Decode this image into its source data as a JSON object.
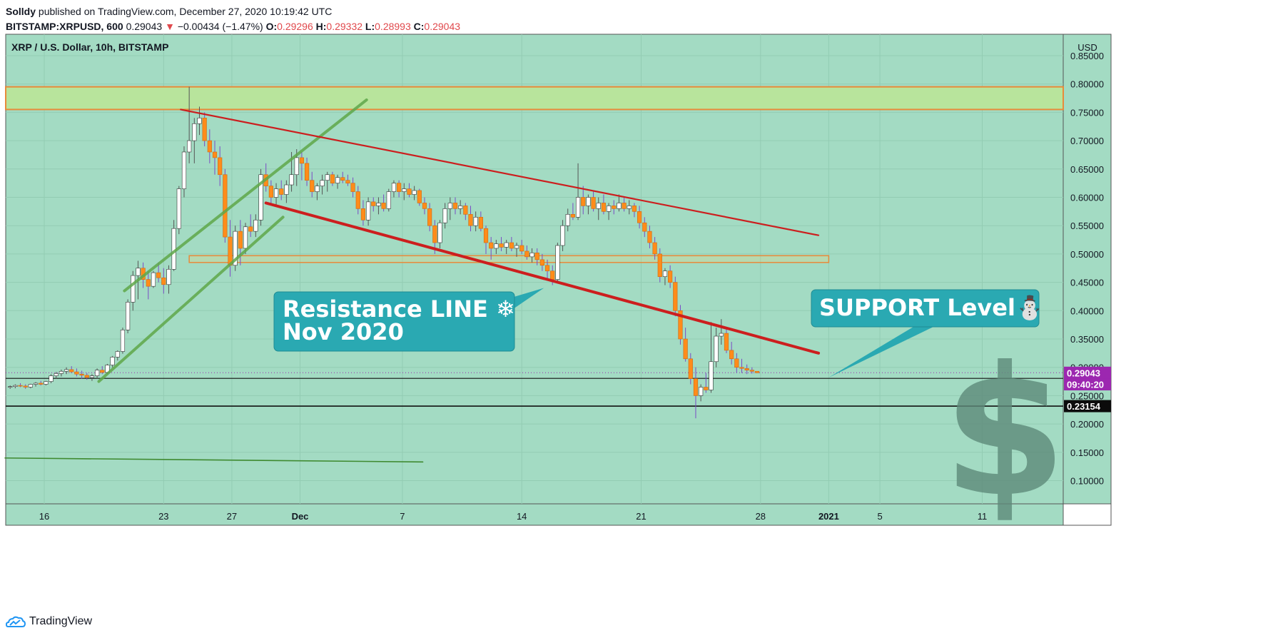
{
  "header": {
    "author": "Solldy",
    "published_text": " published on TradingView.com, December 27, 2020 10:19:42 UTC",
    "symbol": "BITSTAMP:XRPUSD, 600",
    "last": "0.29043",
    "change": "−0.00434 (−1.47%)",
    "o_label": "O:",
    "o_value": "0.29296",
    "h_label": "H:",
    "h_value": "0.29332",
    "l_label": "L:",
    "l_value": "0.28993",
    "c_label": "C:",
    "c_value": "0.29043"
  },
  "footer": {
    "brand": "TradingView"
  },
  "colors": {
    "background": "#a3dbc3",
    "up_candle": "#ffffff",
    "down_candle": "#ff8c1a",
    "resistance_zone": "#b8e49c",
    "zone_border": "#e88a3a",
    "channel_green": "#5fa84a",
    "trend_red": "#cc1e1e",
    "callout_teal": "#2aa9b2",
    "price_tag_purple": "#9c27b0",
    "dollar_sign": "#5e8a7a"
  },
  "chart_data": {
    "type": "candlestick",
    "title": "XRP / U.S. Dollar, 10h, BITSTAMP",
    "currency_label": "USD",
    "ylim": [
      0.065,
      0.865
    ],
    "y_ticks": [
      "0.10000",
      "0.15000",
      "0.20000",
      "0.25000",
      "0.30000",
      "0.35000",
      "0.40000",
      "0.45000",
      "0.50000",
      "0.55000",
      "0.60000",
      "0.65000",
      "0.70000",
      "0.75000",
      "0.80000",
      "0.85000"
    ],
    "x_ticks": [
      {
        "label": "16",
        "day": 16
      },
      {
        "label": "23",
        "day": 23
      },
      {
        "label": "27",
        "day": 27
      },
      {
        "label": "Dec",
        "day": 31
      },
      {
        "label": "7",
        "day": 37
      },
      {
        "label": "14",
        "day": 44
      },
      {
        "label": "21",
        "day": 51
      },
      {
        "label": "28",
        "day": 58
      },
      {
        "label": "2021",
        "day": 62
      },
      {
        "label": "5",
        "day": 65
      },
      {
        "label": "11",
        "day": 71
      }
    ],
    "x_axis_note": "day values count days from Nov 1 2020 (Dec 1 = 31)",
    "price_tags": [
      {
        "label": "0.29043",
        "value": 0.29043,
        "style": "purple"
      },
      {
        "label": "09:40:20",
        "value": 0.27,
        "style": "purple"
      },
      {
        "label": "0.23154",
        "value": 0.23154,
        "style": "black"
      }
    ],
    "horizontal_lines": [
      0.2805,
      0.23154
    ],
    "zones": [
      {
        "name": "top-zone",
        "y1": 0.755,
        "y2": 0.795
      },
      {
        "name": "mid-zone",
        "y1": 0.485,
        "y2": 0.497,
        "x1": 24.5,
        "x2": 62
      }
    ],
    "trendlines": [
      {
        "name": "channel-lower",
        "color": "green",
        "p1": [
          19.2,
          0.275
        ],
        "p2": [
          30.0,
          0.565
        ]
      },
      {
        "name": "channel-upper",
        "color": "green",
        "p1": [
          20.7,
          0.435
        ],
        "p2": [
          34.9,
          0.772
        ]
      },
      {
        "name": "red-upper",
        "color": "red",
        "p1": [
          24.0,
          0.755
        ],
        "p2": [
          61.4,
          0.533
        ]
      },
      {
        "name": "red-lower",
        "color": "red",
        "p1": [
          29.0,
          0.59
        ],
        "p2": [
          61.4,
          0.325
        ]
      },
      {
        "name": "low-line",
        "color": "green",
        "p1": [
          13.7,
          0.14
        ],
        "p2": [
          38.2,
          0.133
        ]
      }
    ],
    "callouts": [
      {
        "name": "resistance-callout",
        "lines": [
          "Resistance LINE ❄",
          "Nov 2020"
        ],
        "pointer": [
          45.3,
          0.44
        ]
      },
      {
        "name": "support-callout",
        "lines": [
          "SUPPORT Level⛄"
        ],
        "pointer": [
          62.0,
          0.282
        ]
      }
    ],
    "candles": [
      [
        14.0,
        0.265,
        0.268,
        0.262,
        0.266
      ],
      [
        14.3,
        0.266,
        0.27,
        0.263,
        0.268
      ],
      [
        14.6,
        0.268,
        0.272,
        0.265,
        0.267
      ],
      [
        14.9,
        0.267,
        0.27,
        0.262,
        0.265
      ],
      [
        15.2,
        0.265,
        0.271,
        0.263,
        0.27
      ],
      [
        15.5,
        0.27,
        0.274,
        0.266,
        0.272
      ],
      [
        15.8,
        0.272,
        0.276,
        0.268,
        0.27
      ],
      [
        16.1,
        0.27,
        0.276,
        0.268,
        0.275
      ],
      [
        16.4,
        0.275,
        0.288,
        0.272,
        0.285
      ],
      [
        16.7,
        0.285,
        0.292,
        0.28,
        0.289
      ],
      [
        17.0,
        0.289,
        0.296,
        0.284,
        0.293
      ],
      [
        17.3,
        0.293,
        0.3,
        0.288,
        0.296
      ],
      [
        17.6,
        0.296,
        0.302,
        0.29,
        0.292
      ],
      [
        17.9,
        0.292,
        0.298,
        0.284,
        0.288
      ],
      [
        18.2,
        0.288,
        0.294,
        0.28,
        0.286
      ],
      [
        18.5,
        0.286,
        0.29,
        0.278,
        0.282
      ],
      [
        18.8,
        0.282,
        0.288,
        0.276,
        0.285
      ],
      [
        19.1,
        0.285,
        0.298,
        0.28,
        0.295
      ],
      [
        19.4,
        0.295,
        0.302,
        0.288,
        0.291
      ],
      [
        19.7,
        0.291,
        0.306,
        0.288,
        0.304
      ],
      [
        20.0,
        0.304,
        0.32,
        0.3,
        0.318
      ],
      [
        20.3,
        0.318,
        0.33,
        0.312,
        0.328
      ],
      [
        20.6,
        0.328,
        0.37,
        0.324,
        0.366
      ],
      [
        20.9,
        0.366,
        0.42,
        0.36,
        0.415
      ],
      [
        21.2,
        0.415,
        0.47,
        0.4,
        0.462
      ],
      [
        21.5,
        0.462,
        0.488,
        0.42,
        0.475
      ],
      [
        21.8,
        0.475,
        0.485,
        0.44,
        0.455
      ],
      [
        22.1,
        0.455,
        0.47,
        0.42,
        0.443
      ],
      [
        22.4,
        0.443,
        0.47,
        0.44,
        0.467
      ],
      [
        22.7,
        0.467,
        0.485,
        0.45,
        0.458
      ],
      [
        23.0,
        0.458,
        0.475,
        0.43,
        0.446
      ],
      [
        23.3,
        0.446,
        0.48,
        0.43,
        0.473
      ],
      [
        23.6,
        0.473,
        0.56,
        0.47,
        0.545
      ],
      [
        23.9,
        0.545,
        0.62,
        0.535,
        0.615
      ],
      [
        24.2,
        0.615,
        0.69,
        0.6,
        0.68
      ],
      [
        24.5,
        0.68,
        0.795,
        0.66,
        0.7
      ],
      [
        24.8,
        0.7,
        0.74,
        0.66,
        0.73
      ],
      [
        25.1,
        0.73,
        0.76,
        0.71,
        0.74
      ],
      [
        25.4,
        0.74,
        0.75,
        0.69,
        0.7
      ],
      [
        25.7,
        0.7,
        0.72,
        0.66,
        0.68
      ],
      [
        26.0,
        0.68,
        0.7,
        0.64,
        0.67
      ],
      [
        26.3,
        0.67,
        0.69,
        0.62,
        0.64
      ],
      [
        26.6,
        0.64,
        0.65,
        0.52,
        0.53
      ],
      [
        26.9,
        0.53,
        0.56,
        0.46,
        0.48
      ],
      [
        27.2,
        0.48,
        0.55,
        0.47,
        0.54
      ],
      [
        27.5,
        0.54,
        0.56,
        0.48,
        0.51
      ],
      [
        27.8,
        0.51,
        0.555,
        0.5,
        0.548
      ],
      [
        28.1,
        0.548,
        0.57,
        0.53,
        0.54
      ],
      [
        28.4,
        0.54,
        0.57,
        0.53,
        0.56
      ],
      [
        28.7,
        0.56,
        0.65,
        0.55,
        0.64
      ],
      [
        29.0,
        0.64,
        0.66,
        0.61,
        0.62
      ],
      [
        29.3,
        0.62,
        0.63,
        0.59,
        0.6
      ],
      [
        29.6,
        0.6,
        0.625,
        0.585,
        0.615
      ],
      [
        29.9,
        0.615,
        0.63,
        0.595,
        0.605
      ],
      [
        30.2,
        0.605,
        0.63,
        0.59,
        0.622
      ],
      [
        30.5,
        0.622,
        0.68,
        0.61,
        0.64
      ],
      [
        30.8,
        0.64,
        0.685,
        0.62,
        0.67
      ],
      [
        31.1,
        0.67,
        0.68,
        0.63,
        0.66
      ],
      [
        31.4,
        0.66,
        0.67,
        0.62,
        0.63
      ],
      [
        31.7,
        0.63,
        0.645,
        0.6,
        0.61
      ],
      [
        32.0,
        0.61,
        0.625,
        0.595,
        0.62
      ],
      [
        32.3,
        0.62,
        0.64,
        0.605,
        0.63
      ],
      [
        32.6,
        0.63,
        0.645,
        0.61,
        0.64
      ],
      [
        32.9,
        0.64,
        0.645,
        0.62,
        0.625
      ],
      [
        33.2,
        0.625,
        0.64,
        0.615,
        0.635
      ],
      [
        33.5,
        0.635,
        0.645,
        0.625,
        0.63
      ],
      [
        33.8,
        0.63,
        0.64,
        0.62,
        0.625
      ],
      [
        34.1,
        0.625,
        0.635,
        0.6,
        0.61
      ],
      [
        34.4,
        0.61,
        0.62,
        0.57,
        0.58
      ],
      [
        34.7,
        0.58,
        0.595,
        0.55,
        0.56
      ],
      [
        35.0,
        0.56,
        0.6,
        0.55,
        0.592
      ],
      [
        35.3,
        0.592,
        0.6,
        0.575,
        0.585
      ],
      [
        35.6,
        0.585,
        0.6,
        0.57,
        0.59
      ],
      [
        35.9,
        0.59,
        0.605,
        0.575,
        0.58
      ],
      [
        36.2,
        0.58,
        0.615,
        0.575,
        0.61
      ],
      [
        36.5,
        0.61,
        0.63,
        0.6,
        0.625
      ],
      [
        36.8,
        0.625,
        0.63,
        0.6,
        0.61
      ],
      [
        37.1,
        0.61,
        0.625,
        0.595,
        0.615
      ],
      [
        37.4,
        0.615,
        0.625,
        0.6,
        0.605
      ],
      [
        37.7,
        0.605,
        0.62,
        0.595,
        0.612
      ],
      [
        38.0,
        0.612,
        0.615,
        0.585,
        0.59
      ],
      [
        38.3,
        0.59,
        0.6,
        0.57,
        0.58
      ],
      [
        38.6,
        0.58,
        0.59,
        0.54,
        0.55
      ],
      [
        38.9,
        0.55,
        0.56,
        0.5,
        0.52
      ],
      [
        39.2,
        0.52,
        0.56,
        0.51,
        0.555
      ],
      [
        39.5,
        0.555,
        0.59,
        0.545,
        0.58
      ],
      [
        39.8,
        0.58,
        0.6,
        0.56,
        0.59
      ],
      [
        40.1,
        0.59,
        0.6,
        0.57,
        0.58
      ],
      [
        40.4,
        0.58,
        0.595,
        0.57,
        0.585
      ],
      [
        40.7,
        0.585,
        0.59,
        0.56,
        0.57
      ],
      [
        41.0,
        0.57,
        0.585,
        0.54,
        0.55
      ],
      [
        41.3,
        0.55,
        0.575,
        0.54,
        0.565
      ],
      [
        41.6,
        0.565,
        0.575,
        0.54,
        0.545
      ],
      [
        41.9,
        0.545,
        0.55,
        0.5,
        0.52
      ],
      [
        42.2,
        0.52,
        0.53,
        0.49,
        0.51
      ],
      [
        42.5,
        0.51,
        0.525,
        0.5,
        0.518
      ],
      [
        42.8,
        0.518,
        0.53,
        0.505,
        0.512
      ],
      [
        43.1,
        0.512,
        0.525,
        0.5,
        0.52
      ],
      [
        43.4,
        0.52,
        0.53,
        0.505,
        0.51
      ],
      [
        43.7,
        0.51,
        0.52,
        0.495,
        0.515
      ],
      [
        44.0,
        0.515,
        0.525,
        0.5,
        0.505
      ],
      [
        44.3,
        0.505,
        0.515,
        0.49,
        0.495
      ],
      [
        44.6,
        0.495,
        0.51,
        0.485,
        0.502
      ],
      [
        44.9,
        0.502,
        0.51,
        0.48,
        0.49
      ],
      [
        45.2,
        0.49,
        0.5,
        0.47,
        0.48
      ],
      [
        45.5,
        0.48,
        0.49,
        0.455,
        0.47
      ],
      [
        45.8,
        0.47,
        0.48,
        0.445,
        0.455
      ],
      [
        46.1,
        0.455,
        0.52,
        0.45,
        0.515
      ],
      [
        46.4,
        0.515,
        0.56,
        0.505,
        0.55
      ],
      [
        46.7,
        0.55,
        0.58,
        0.54,
        0.57
      ],
      [
        47.0,
        0.57,
        0.59,
        0.56,
        0.565
      ],
      [
        47.3,
        0.565,
        0.66,
        0.56,
        0.6
      ],
      [
        47.6,
        0.6,
        0.62,
        0.57,
        0.585
      ],
      [
        47.9,
        0.585,
        0.605,
        0.57,
        0.6
      ],
      [
        48.2,
        0.6,
        0.61,
        0.575,
        0.58
      ],
      [
        48.5,
        0.58,
        0.6,
        0.56,
        0.59
      ],
      [
        48.8,
        0.59,
        0.605,
        0.57,
        0.575
      ],
      [
        49.1,
        0.575,
        0.59,
        0.56,
        0.585
      ],
      [
        49.4,
        0.585,
        0.595,
        0.57,
        0.58
      ],
      [
        49.7,
        0.58,
        0.605,
        0.575,
        0.59
      ],
      [
        50.0,
        0.59,
        0.6,
        0.575,
        0.58
      ],
      [
        50.3,
        0.58,
        0.595,
        0.57,
        0.585
      ],
      [
        50.6,
        0.585,
        0.59,
        0.565,
        0.575
      ],
      [
        50.9,
        0.575,
        0.585,
        0.545,
        0.555
      ],
      [
        51.2,
        0.555,
        0.565,
        0.53,
        0.54
      ],
      [
        51.5,
        0.54,
        0.55,
        0.51,
        0.52
      ],
      [
        51.8,
        0.52,
        0.53,
        0.49,
        0.5
      ],
      [
        52.1,
        0.5,
        0.51,
        0.45,
        0.46
      ],
      [
        52.4,
        0.46,
        0.475,
        0.445,
        0.47
      ],
      [
        52.7,
        0.47,
        0.48,
        0.44,
        0.45
      ],
      [
        53.0,
        0.45,
        0.46,
        0.39,
        0.4
      ],
      [
        53.3,
        0.4,
        0.41,
        0.34,
        0.35
      ],
      [
        53.6,
        0.35,
        0.37,
        0.31,
        0.315
      ],
      [
        53.9,
        0.315,
        0.325,
        0.27,
        0.28
      ],
      [
        54.2,
        0.28,
        0.3,
        0.21,
        0.25
      ],
      [
        54.5,
        0.25,
        0.27,
        0.24,
        0.265
      ],
      [
        54.8,
        0.265,
        0.29,
        0.255,
        0.26
      ],
      [
        55.1,
        0.26,
        0.38,
        0.255,
        0.31
      ],
      [
        55.4,
        0.31,
        0.37,
        0.3,
        0.355
      ],
      [
        55.7,
        0.355,
        0.385,
        0.34,
        0.36
      ],
      [
        56.0,
        0.36,
        0.37,
        0.325,
        0.33
      ],
      [
        56.3,
        0.33,
        0.345,
        0.305,
        0.315
      ],
      [
        56.6,
        0.315,
        0.325,
        0.29,
        0.3
      ],
      [
        56.9,
        0.3,
        0.315,
        0.29,
        0.298
      ],
      [
        57.2,
        0.298,
        0.305,
        0.288,
        0.295
      ],
      [
        57.5,
        0.295,
        0.3,
        0.289,
        0.293
      ],
      [
        57.8,
        0.293,
        0.2933,
        0.2899,
        0.2904
      ]
    ]
  }
}
